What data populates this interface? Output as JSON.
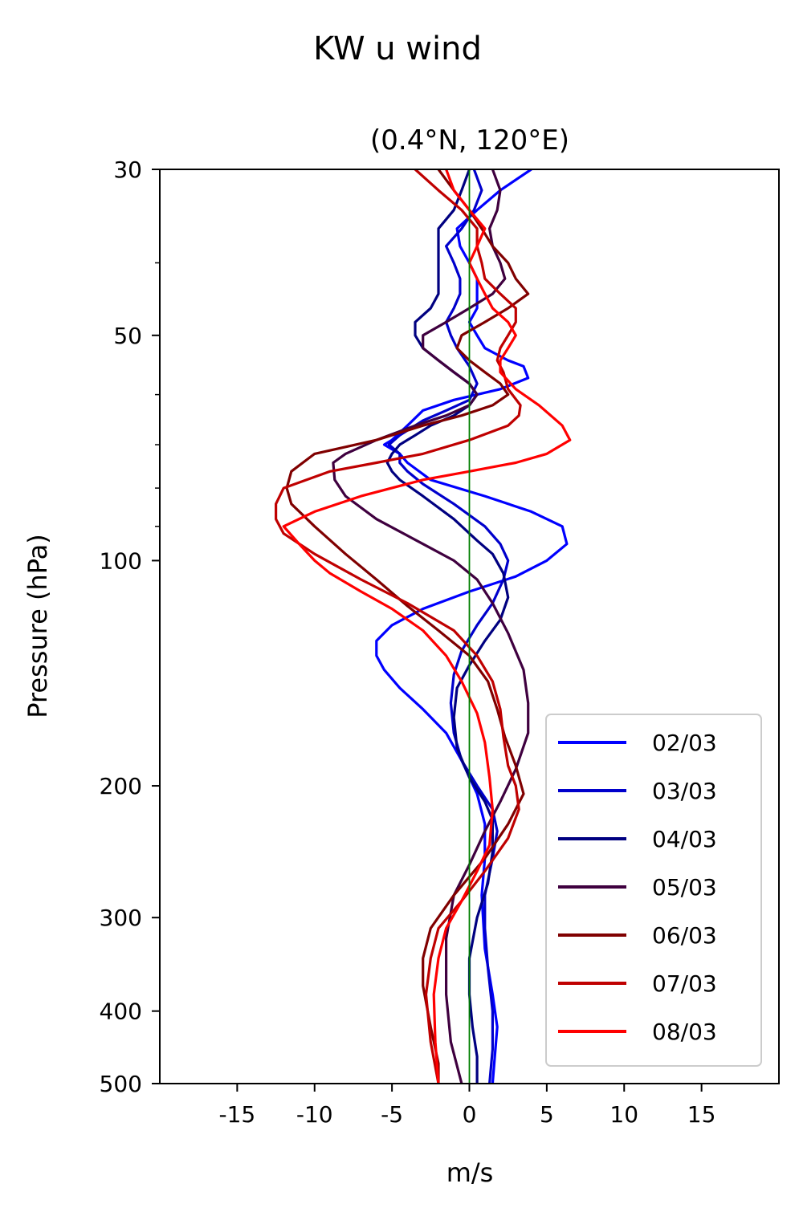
{
  "chart_data": {
    "type": "line",
    "title": "KW u wind",
    "subtitle": "(0.4°N, 120°E)",
    "xlabel": "m/s",
    "ylabel": "Pressure (hPa)",
    "xlim": [
      -20,
      20
    ],
    "ylim": [
      500,
      30
    ],
    "yscale": "log",
    "x_ticks": [
      -15,
      -10,
      -5,
      0,
      5,
      10,
      15
    ],
    "x_tick_labels": [
      "-15",
      "-10",
      "-5",
      "0",
      "5",
      "10",
      "15"
    ],
    "y_ticks": [
      30,
      50,
      100,
      200,
      300,
      400,
      500
    ],
    "y_tick_labels": [
      "30",
      "50",
      "100",
      "200",
      "300",
      "400",
      "500"
    ],
    "y_minor_ticks": [
      40,
      60,
      70,
      80,
      90
    ],
    "zero_line": {
      "x": 0,
      "color": "#007f00"
    },
    "grid": false,
    "legend": {
      "position": "bottom-right"
    },
    "series": [
      {
        "name": "02/03",
        "color": "#0000ff",
        "points": [
          [
            4,
            30
          ],
          [
            2,
            32
          ],
          [
            0.5,
            34
          ],
          [
            -0.8,
            36
          ],
          [
            -0.6,
            38
          ],
          [
            0,
            40
          ],
          [
            0.5,
            42
          ],
          [
            0.5,
            44
          ],
          [
            0.5,
            46
          ],
          [
            0,
            48
          ],
          [
            0.5,
            50
          ],
          [
            1,
            52
          ],
          [
            2.5,
            54
          ],
          [
            3.5,
            55
          ],
          [
            3.8,
            57
          ],
          [
            2,
            59
          ],
          [
            -1,
            61
          ],
          [
            -3,
            63
          ],
          [
            -4,
            66
          ],
          [
            -5,
            69
          ],
          [
            -5.5,
            70
          ],
          [
            -4.5,
            72
          ],
          [
            -4,
            74
          ],
          [
            -2.5,
            78
          ],
          [
            1,
            82
          ],
          [
            4,
            86
          ],
          [
            6,
            90
          ],
          [
            6.3,
            95
          ],
          [
            5,
            100
          ],
          [
            3,
            105
          ],
          [
            0,
            110
          ],
          [
            -3,
            116
          ],
          [
            -5,
            122
          ],
          [
            -6,
            128
          ],
          [
            -6,
            134
          ],
          [
            -5.5,
            140
          ],
          [
            -4.5,
            148
          ],
          [
            -3,
            158
          ],
          [
            -1.5,
            170
          ],
          [
            -0.5,
            185
          ],
          [
            0.5,
            205
          ],
          [
            1,
            225
          ],
          [
            1,
            250
          ],
          [
            0.8,
            280
          ],
          [
            1,
            330
          ],
          [
            1.5,
            380
          ],
          [
            1.8,
            420
          ],
          [
            1.5,
            500
          ]
        ]
      },
      {
        "name": "03/03",
        "color": "#0000cc",
        "points": [
          [
            0.3,
            30
          ],
          [
            0.8,
            32
          ],
          [
            0.3,
            34
          ],
          [
            -0.5,
            36
          ],
          [
            -1.5,
            38
          ],
          [
            -1,
            40
          ],
          [
            -0.6,
            42
          ],
          [
            -0.6,
            44
          ],
          [
            -1,
            46
          ],
          [
            -1.5,
            48
          ],
          [
            -1.2,
            50
          ],
          [
            -0.8,
            52
          ],
          [
            0,
            55
          ],
          [
            0.5,
            58
          ],
          [
            0,
            61
          ],
          [
            -1.5,
            63
          ],
          [
            -3,
            65
          ],
          [
            -4.5,
            68
          ],
          [
            -5.2,
            70
          ],
          [
            -4.5,
            72
          ],
          [
            -4.5,
            74
          ],
          [
            -4,
            76
          ],
          [
            -3,
            79
          ],
          [
            -1,
            84
          ],
          [
            1,
            90
          ],
          [
            2,
            95
          ],
          [
            2.5,
            100
          ],
          [
            2.2,
            106
          ],
          [
            1.5,
            114
          ],
          [
            0.5,
            122
          ],
          [
            -0.5,
            132
          ],
          [
            -1,
            142
          ],
          [
            -1.2,
            155
          ],
          [
            -1,
            170
          ],
          [
            -0.5,
            185
          ],
          [
            0.5,
            200
          ],
          [
            1.5,
            215
          ],
          [
            1.8,
            230
          ],
          [
            1.5,
            250
          ],
          [
            1,
            280
          ],
          [
            1,
            310
          ],
          [
            1.2,
            350
          ],
          [
            1.5,
            400
          ],
          [
            1.5,
            450
          ],
          [
            1.3,
            500
          ]
        ]
      },
      {
        "name": "04/03",
        "color": "#000080",
        "points": [
          [
            0,
            30
          ],
          [
            -0.5,
            32
          ],
          [
            -1,
            34
          ],
          [
            -2,
            36
          ],
          [
            -2,
            38
          ],
          [
            -2,
            40
          ],
          [
            -2,
            42
          ],
          [
            -2,
            44
          ],
          [
            -2.5,
            46
          ],
          [
            -3.5,
            48
          ],
          [
            -3.5,
            50
          ],
          [
            -3,
            52
          ],
          [
            -2,
            54
          ],
          [
            -1,
            56
          ],
          [
            0,
            58
          ],
          [
            0.5,
            60
          ],
          [
            0,
            62
          ],
          [
            -1,
            64
          ],
          [
            -2.5,
            66
          ],
          [
            -3.5,
            68
          ],
          [
            -4.5,
            70
          ],
          [
            -5,
            72
          ],
          [
            -5.3,
            74
          ],
          [
            -5,
            76
          ],
          [
            -4.5,
            78
          ],
          [
            -3,
            82
          ],
          [
            -1,
            88
          ],
          [
            0.5,
            94
          ],
          [
            1.5,
            98
          ],
          [
            2.2,
            104
          ],
          [
            2.5,
            112
          ],
          [
            2,
            120
          ],
          [
            1,
            128
          ],
          [
            0,
            138
          ],
          [
            -0.8,
            148
          ],
          [
            -1,
            162
          ],
          [
            -0.8,
            178
          ],
          [
            0,
            195
          ],
          [
            1,
            210
          ],
          [
            1.5,
            222
          ],
          [
            1.5,
            245
          ],
          [
            1.2,
            270
          ],
          [
            0.5,
            300
          ],
          [
            0,
            340
          ],
          [
            0,
            380
          ],
          [
            0.2,
            420
          ],
          [
            0.5,
            460
          ],
          [
            0.5,
            500
          ]
        ]
      },
      {
        "name": "05/03",
        "color": "#3f003f",
        "points": [
          [
            1.5,
            30
          ],
          [
            2,
            32
          ],
          [
            1.8,
            34
          ],
          [
            1.3,
            36
          ],
          [
            1.5,
            38
          ],
          [
            2,
            40
          ],
          [
            2.3,
            42
          ],
          [
            1.5,
            44
          ],
          [
            0,
            46
          ],
          [
            -1.5,
            48
          ],
          [
            -3,
            50
          ],
          [
            -3,
            52
          ],
          [
            -2,
            54
          ],
          [
            -1,
            56
          ],
          [
            0,
            58
          ],
          [
            0.5,
            60
          ],
          [
            0,
            62
          ],
          [
            -1.5,
            64
          ],
          [
            -3.5,
            66
          ],
          [
            -6,
            69
          ],
          [
            -8,
            72
          ],
          [
            -8.8,
            74
          ],
          [
            -8.7,
            78
          ],
          [
            -8,
            82
          ],
          [
            -6,
            88
          ],
          [
            -3,
            95
          ],
          [
            -1,
            100
          ],
          [
            0.5,
            106
          ],
          [
            1.5,
            114
          ],
          [
            2.5,
            125
          ],
          [
            3.5,
            140
          ],
          [
            3.8,
            155
          ],
          [
            3.8,
            170
          ],
          [
            3,
            190
          ],
          [
            2,
            210
          ],
          [
            1,
            230
          ],
          [
            0,
            255
          ],
          [
            -1,
            280
          ],
          [
            -1.5,
            320
          ],
          [
            -1.5,
            380
          ],
          [
            -1.2,
            440
          ],
          [
            -0.5,
            500
          ]
        ]
      },
      {
        "name": "06/03",
        "color": "#800000",
        "points": [
          [
            -2,
            30
          ],
          [
            -1,
            32
          ],
          [
            0,
            34
          ],
          [
            0.8,
            36
          ],
          [
            1.5,
            38
          ],
          [
            2.5,
            40
          ],
          [
            3,
            42
          ],
          [
            3.8,
            44
          ],
          [
            2.5,
            46
          ],
          [
            1,
            48
          ],
          [
            -0.5,
            50
          ],
          [
            -0.8,
            52
          ],
          [
            0,
            54
          ],
          [
            1,
            56
          ],
          [
            2,
            58
          ],
          [
            2.5,
            60
          ],
          [
            1.5,
            62
          ],
          [
            -0.5,
            64
          ],
          [
            -3,
            66
          ],
          [
            -6,
            69
          ],
          [
            -10,
            72
          ],
          [
            -11.5,
            76
          ],
          [
            -11.8,
            80
          ],
          [
            -11.5,
            84
          ],
          [
            -10,
            90
          ],
          [
            -8,
            98
          ],
          [
            -6,
            106
          ],
          [
            -4,
            115
          ],
          [
            -2,
            124
          ],
          [
            0,
            134
          ],
          [
            1.2,
            145
          ],
          [
            1.8,
            158
          ],
          [
            2.3,
            172
          ],
          [
            3,
            188
          ],
          [
            3.5,
            205
          ],
          [
            2.5,
            225
          ],
          [
            1,
            250
          ],
          [
            -1,
            280
          ],
          [
            -2.5,
            310
          ],
          [
            -3,
            340
          ],
          [
            -3,
            370
          ],
          [
            -2.5,
            420
          ],
          [
            -2,
            470
          ],
          [
            -2,
            500
          ]
        ]
      },
      {
        "name": "07/03",
        "color": "#bf0000",
        "points": [
          [
            -3.5,
            30
          ],
          [
            -2,
            32
          ],
          [
            -0.5,
            34
          ],
          [
            0.5,
            36
          ],
          [
            0.5,
            38
          ],
          [
            0.8,
            40
          ],
          [
            1,
            42
          ],
          [
            2,
            44
          ],
          [
            3,
            46
          ],
          [
            3,
            48
          ],
          [
            2.5,
            50
          ],
          [
            2,
            52
          ],
          [
            1.8,
            54
          ],
          [
            2.2,
            56
          ],
          [
            2.5,
            59
          ],
          [
            3.3,
            62
          ],
          [
            3.2,
            64
          ],
          [
            2.5,
            66
          ],
          [
            0,
            69
          ],
          [
            -3,
            72
          ],
          [
            -6,
            74
          ],
          [
            -9,
            76
          ],
          [
            -12,
            80
          ],
          [
            -12.5,
            84
          ],
          [
            -12.5,
            88
          ],
          [
            -12,
            92
          ],
          [
            -10,
            98
          ],
          [
            -7,
            106
          ],
          [
            -4,
            114
          ],
          [
            -1,
            124
          ],
          [
            0.5,
            134
          ],
          [
            1.5,
            145
          ],
          [
            2,
            158
          ],
          [
            2.2,
            172
          ],
          [
            2.5,
            188
          ],
          [
            3,
            200
          ],
          [
            3.2,
            215
          ],
          [
            2.5,
            235
          ],
          [
            1,
            260
          ],
          [
            -0.5,
            285
          ],
          [
            -2,
            310
          ],
          [
            -2.5,
            340
          ],
          [
            -2.8,
            380
          ],
          [
            -2.5,
            440
          ],
          [
            -2,
            500
          ]
        ]
      },
      {
        "name": "08/03",
        "color": "#ff0000",
        "points": [
          [
            -1.5,
            30
          ],
          [
            -1,
            32
          ],
          [
            0,
            34
          ],
          [
            1,
            36
          ],
          [
            0.5,
            38
          ],
          [
            0,
            40
          ],
          [
            0.5,
            42
          ],
          [
            1,
            44
          ],
          [
            1.5,
            46
          ],
          [
            2.5,
            48
          ],
          [
            3,
            50
          ],
          [
            2.5,
            52
          ],
          [
            2,
            54
          ],
          [
            2,
            56
          ],
          [
            3,
            59
          ],
          [
            4.5,
            62
          ],
          [
            6,
            66
          ],
          [
            6.5,
            69
          ],
          [
            5,
            72
          ],
          [
            3,
            74
          ],
          [
            0,
            76
          ],
          [
            -3,
            78
          ],
          [
            -7,
            82
          ],
          [
            -10,
            86
          ],
          [
            -12,
            90
          ],
          [
            -11,
            95
          ],
          [
            -10,
            100
          ],
          [
            -9,
            104
          ],
          [
            -7,
            110
          ],
          [
            -5,
            116
          ],
          [
            -3,
            124
          ],
          [
            -1.5,
            134
          ],
          [
            -0.5,
            145
          ],
          [
            0.5,
            160
          ],
          [
            1,
            175
          ],
          [
            1.3,
            195
          ],
          [
            1.5,
            215
          ],
          [
            1.3,
            240
          ],
          [
            0.5,
            260
          ],
          [
            -0.5,
            285
          ],
          [
            -1.5,
            310
          ],
          [
            -2,
            340
          ],
          [
            -2.3,
            380
          ],
          [
            -2.2,
            440
          ],
          [
            -2,
            500
          ]
        ]
      }
    ]
  }
}
